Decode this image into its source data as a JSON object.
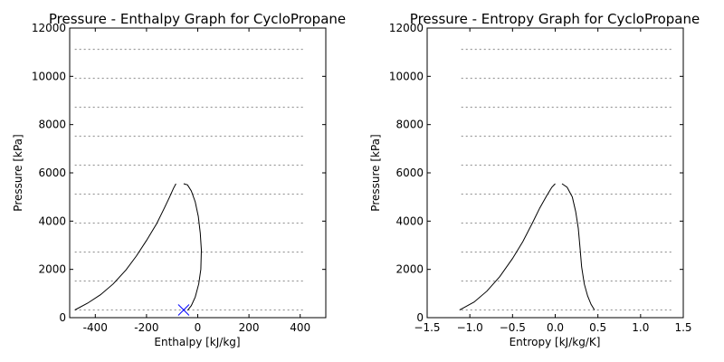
{
  "chart_data": [
    {
      "type": "line",
      "title": "Pressure - Enthalpy Graph for CycloPropane",
      "xlabel": "Enthalpy [kJ/kg]",
      "ylabel": "Pressure [kPa]",
      "xlim": [
        -500,
        500
      ],
      "ylim": [
        0,
        12000
      ],
      "xticks": [
        -400,
        -200,
        0,
        200,
        400
      ],
      "yticks": [
        0,
        2000,
        4000,
        6000,
        8000,
        10000,
        12000
      ],
      "isobars": {
        "x_range": [
          -480,
          420
        ],
        "pressures": [
          320,
          1520,
          2720,
          3920,
          5120,
          6320,
          7520,
          8720,
          9920,
          11120
        ]
      },
      "saturation_liquid": {
        "x": [
          -480,
          -430,
          -380,
          -330,
          -280,
          -240,
          -200,
          -160,
          -130,
          -110,
          -95,
          -85
        ],
        "y": [
          320,
          600,
          950,
          1400,
          1980,
          2550,
          3200,
          3900,
          4550,
          5000,
          5350,
          5550
        ]
      },
      "saturation_vapor": {
        "x": [
          -55,
          -40,
          -25,
          -10,
          2,
          10,
          14,
          12,
          4,
          -10,
          -25,
          -40
        ],
        "y": [
          5550,
          5500,
          5250,
          4800,
          4200,
          3500,
          2800,
          2000,
          1400,
          850,
          500,
          300
        ]
      },
      "marker": {
        "x": -55,
        "y": 320,
        "symbol": "x",
        "color": "#0000ff"
      }
    },
    {
      "type": "line",
      "title": "Pressure - Entropy Graph for CycloPropane",
      "xlabel": "Entropy [kJ/kg/K]",
      "ylabel": "Pressure [kPa]",
      "xlim": [
        -1.5,
        1.5
      ],
      "ylim": [
        0,
        12000
      ],
      "xticks": [
        -1.5,
        -1.0,
        -0.5,
        0.0,
        0.5,
        1.0,
        1.5
      ],
      "xtick_labels": [
        "−1.5",
        "−1.0",
        "−0.5",
        "0.0",
        "0.5",
        "1.0",
        "1.5"
      ],
      "yticks": [
        0,
        2000,
        4000,
        6000,
        8000,
        10000,
        12000
      ],
      "isobars": {
        "x_range": [
          -1.1,
          1.38
        ],
        "pressures": [
          320,
          1520,
          2720,
          3920,
          5120,
          6320,
          7520,
          8720,
          9920,
          11120
        ]
      },
      "saturation_liquid": {
        "x": [
          -1.12,
          -0.95,
          -0.8,
          -0.65,
          -0.5,
          -0.38,
          -0.27,
          -0.18,
          -0.1,
          -0.04,
          0.0
        ],
        "y": [
          320,
          650,
          1100,
          1700,
          2450,
          3150,
          3900,
          4550,
          5050,
          5400,
          5550
        ]
      },
      "saturation_vapor": {
        "x": [
          0.08,
          0.14,
          0.2,
          0.24,
          0.27,
          0.29,
          0.31,
          0.34,
          0.38,
          0.42,
          0.46
        ],
        "y": [
          5550,
          5400,
          5000,
          4400,
          3700,
          2900,
          2100,
          1400,
          900,
          550,
          320
        ]
      }
    }
  ],
  "colors": {
    "curve": "#000000",
    "isobar": "#9a9a9a",
    "marker": "#0000ff",
    "frame": "#000000"
  }
}
